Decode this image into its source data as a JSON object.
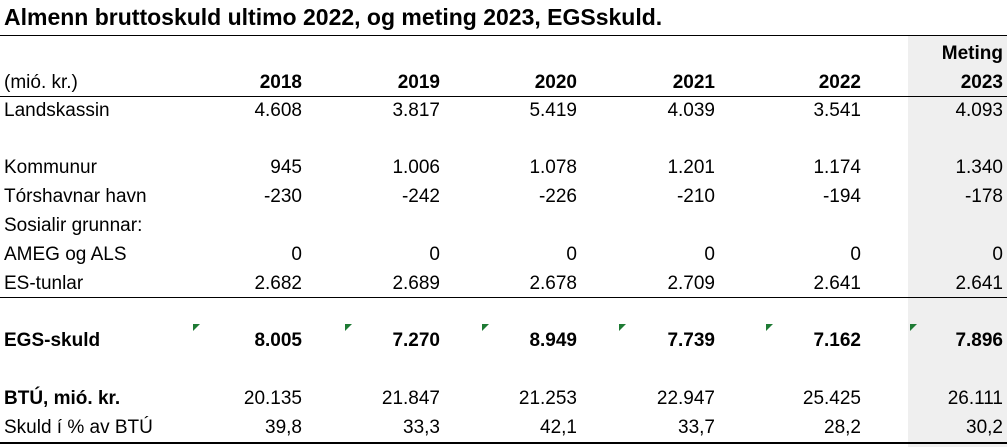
{
  "title": "Almenn bruttoskuld ultimo 2022, og meting 2023,  EGSskuld.",
  "header": {
    "meting_label": "Meting",
    "unit_label": "(mió. kr.)",
    "years": [
      "2018",
      "2019",
      "2020",
      "2021",
      "2022",
      "2023"
    ]
  },
  "rows": [
    {
      "label": "Landskassin",
      "values": [
        "4.608",
        "3.817",
        "5.419",
        "4.039",
        "3.541",
        "4.093"
      ]
    },
    {
      "label": "Kommunur",
      "values": [
        "945",
        "1.006",
        "1.078",
        "1.201",
        "1.174",
        "1.340"
      ]
    },
    {
      "label": "Tórshavnar havn",
      "values": [
        "-230",
        "-242",
        "-226",
        "-210",
        "-194",
        "-178"
      ]
    },
    {
      "label": "Sosialir grunnar:",
      "values": []
    },
    {
      "label": "AMEG og ALS",
      "values": [
        "0",
        "0",
        "0",
        "0",
        "0",
        "0"
      ]
    },
    {
      "label": "ES-tunlar",
      "values": [
        "2.682",
        "2.689",
        "2.678",
        "2.709",
        "2.641",
        "2.641"
      ]
    },
    {
      "label": "EGS-skuld",
      "values": [
        "8.005",
        "7.270",
        "8.949",
        "7.739",
        "7.162",
        "7.896"
      ]
    },
    {
      "label": "BTÚ, mió. kr.",
      "values": [
        "20.135",
        "21.847",
        "21.253",
        "22.947",
        "25.425",
        "26.111"
      ]
    },
    {
      "label": "Skuld í % av BTÚ",
      "values": [
        "39,8",
        "33,3",
        "42,1",
        "33,7",
        "28,2",
        "30,2"
      ]
    }
  ],
  "colors": {
    "shade": "#efefef",
    "error_indicator": "#1e7b34"
  }
}
